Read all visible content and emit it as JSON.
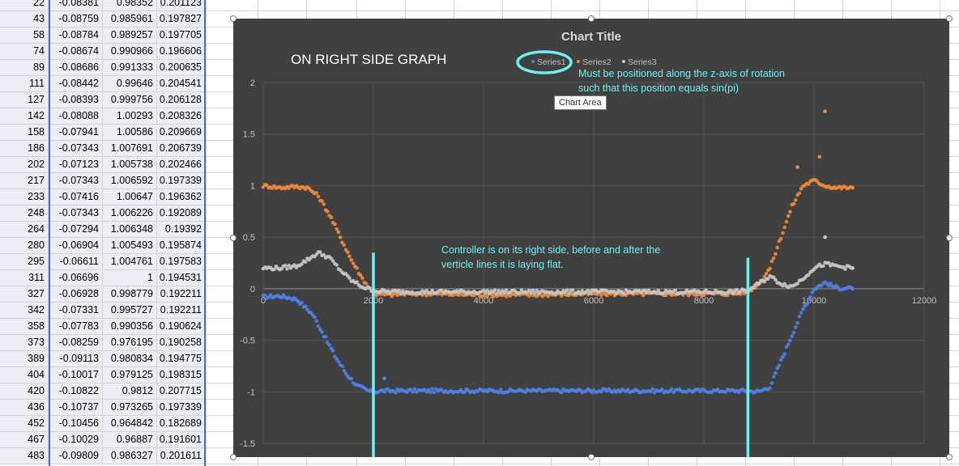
{
  "sheet": {
    "rows": [
      [
        "22",
        "-0.08381",
        "0.98352",
        "0.201123"
      ],
      [
        "43",
        "-0.08759",
        "0.985961",
        "0.197827"
      ],
      [
        "58",
        "-0.08784",
        "0.989257",
        "0.197705"
      ],
      [
        "74",
        "-0.08674",
        "0.990966",
        "0.196606"
      ],
      [
        "89",
        "-0.08686",
        "0.991333",
        "0.200635"
      ],
      [
        "111",
        "-0.08442",
        "0.99646",
        "0.204541"
      ],
      [
        "127",
        "-0.08393",
        "0.999756",
        "0.206128"
      ],
      [
        "142",
        "-0.08088",
        "1.00293",
        "0.208326"
      ],
      [
        "158",
        "-0.07941",
        "1.00586",
        "0.209669"
      ],
      [
        "186",
        "-0.07343",
        "1.007691",
        "0.206739"
      ],
      [
        "202",
        "-0.07123",
        "1.005738",
        "0.202466"
      ],
      [
        "217",
        "-0.07343",
        "1.006592",
        "0.197339"
      ],
      [
        "233",
        "-0.07416",
        "1.00647",
        "0.196362"
      ],
      [
        "248",
        "-0.07343",
        "1.006226",
        "0.192089"
      ],
      [
        "264",
        "-0.07294",
        "1.006348",
        "0.19392"
      ],
      [
        "280",
        "-0.06904",
        "1.005493",
        "0.195874"
      ],
      [
        "295",
        "-0.06611",
        "1.004761",
        "0.197583"
      ],
      [
        "311",
        "-0.06696",
        "1",
        "0.194531"
      ],
      [
        "327",
        "-0.06928",
        "0.998779",
        "0.192211"
      ],
      [
        "342",
        "-0.07331",
        "0.995727",
        "0.192211"
      ],
      [
        "358",
        "-0.07783",
        "0.990356",
        "0.190624"
      ],
      [
        "373",
        "-0.08259",
        "0.976195",
        "0.190258"
      ],
      [
        "389",
        "-0.09113",
        "0.980834",
        "0.194775"
      ],
      [
        "404",
        "-0.10017",
        "0.979125",
        "0.198315"
      ],
      [
        "420",
        "-0.10822",
        "0.9812",
        "0.207715"
      ],
      [
        "436",
        "-0.10737",
        "0.973265",
        "0.197339"
      ],
      [
        "452",
        "-0.10456",
        "0.964842",
        "0.182689"
      ],
      [
        "467",
        "-0.10029",
        "0.96887",
        "0.191601"
      ],
      [
        "483",
        "-0.09809",
        "0.986327",
        "0.201611"
      ]
    ]
  },
  "tooltip": "Chart Area",
  "chart_data": {
    "type": "scatter",
    "title": "Chart Title",
    "xlim": [
      0,
      12000
    ],
    "ylim": [
      -1.5,
      2
    ],
    "xticks": [
      0,
      2000,
      4000,
      6000,
      8000,
      10000,
      12000
    ],
    "xtick_labels": [
      "0",
      "2000",
      "4000",
      "6000",
      "8000",
      "10000",
      "12000"
    ],
    "yticks": [
      -1.5,
      -1,
      -0.5,
      0,
      0.5,
      1,
      1.5,
      2
    ],
    "ytick_labels": [
      "-1.5",
      "-1",
      "-0.5",
      "0",
      "0.5",
      "1",
      "1.5",
      "2"
    ],
    "grid": true,
    "legend_position": "top",
    "series": [
      {
        "name": "Series1",
        "color": "#4f81e8",
        "x": [
          0,
          300,
          600,
          900,
          1100,
          1300,
          1500,
          1700,
          1900,
          2000,
          2200,
          2500,
          3000,
          4000,
          5000,
          6000,
          7000,
          8000,
          8500,
          8800,
          9000,
          9200,
          9400,
          9600,
          9800,
          10000,
          10200,
          10400,
          10700
        ],
        "y": [
          -0.08,
          -0.07,
          -0.1,
          -0.25,
          -0.45,
          -0.65,
          -0.82,
          -0.94,
          -0.99,
          -1.0,
          -0.99,
          -0.99,
          -0.99,
          -0.99,
          -0.99,
          -0.99,
          -0.99,
          -0.99,
          -0.99,
          -0.99,
          -1.0,
          -0.95,
          -0.7,
          -0.45,
          -0.2,
          0.0,
          0.06,
          0.01,
          0.0
        ]
      },
      {
        "name": "Series2",
        "color": "#f28a3c",
        "x": [
          0,
          300,
          600,
          800,
          1000,
          1200,
          1400,
          1600,
          1800,
          2000,
          2300,
          2600,
          3000,
          4000,
          5000,
          6000,
          7000,
          8000,
          8500,
          8800,
          9000,
          9200,
          9400,
          9600,
          9800,
          10000,
          10200,
          10400,
          10700
        ],
        "y": [
          1.0,
          0.98,
          0.99,
          0.98,
          0.9,
          0.72,
          0.5,
          0.28,
          0.1,
          -0.05,
          -0.06,
          -0.05,
          -0.05,
          -0.06,
          -0.06,
          -0.05,
          -0.05,
          -0.05,
          -0.05,
          -0.03,
          0.05,
          0.2,
          0.5,
          0.8,
          1.0,
          1.05,
          1.0,
          0.98,
          0.98
        ]
      },
      {
        "name": "Series3",
        "color": "#c8c8c8",
        "x": [
          0,
          300,
          600,
          800,
          1000,
          1200,
          1400,
          1600,
          1800,
          2000,
          2300,
          2600,
          3000,
          4000,
          5000,
          6000,
          7000,
          8000,
          8500,
          8800,
          9000,
          9200,
          9400,
          9600,
          9800,
          10000,
          10200,
          10400,
          10700
        ],
        "y": [
          0.2,
          0.2,
          0.22,
          0.28,
          0.35,
          0.3,
          0.18,
          0.08,
          0.02,
          -0.02,
          -0.03,
          -0.03,
          -0.03,
          -0.03,
          -0.03,
          -0.03,
          -0.03,
          -0.03,
          -0.03,
          -0.02,
          0.05,
          0.12,
          0.05,
          0.02,
          0.1,
          0.2,
          0.24,
          0.22,
          0.2
        ]
      }
    ],
    "outliers": [
      {
        "series": "Series2",
        "x": 10200,
        "y": 1.72
      },
      {
        "series": "Series2",
        "x": 10100,
        "y": 1.28
      },
      {
        "series": "Series2",
        "x": 9700,
        "y": 1.18
      },
      {
        "series": "Series3",
        "x": 10200,
        "y": 0.5
      },
      {
        "series": "Series1",
        "x": 2200,
        "y": -0.87
      }
    ],
    "vlines": [
      {
        "x": 2000,
        "y1": -1.75,
        "y2": 0.35
      },
      {
        "x": 8800,
        "y1": -1.75,
        "y2": 0.3
      }
    ],
    "annotations": {
      "side": "ON RIGHT SIDE GRAPH",
      "controller_line1": "Controller is on its right side, before and after the",
      "controller_line2": "verticle lines it is laying flat.",
      "z_line1": "Must be positioned along the z-axis of rotation",
      "z_line2": "such that this position equals sin(pi)"
    }
  }
}
